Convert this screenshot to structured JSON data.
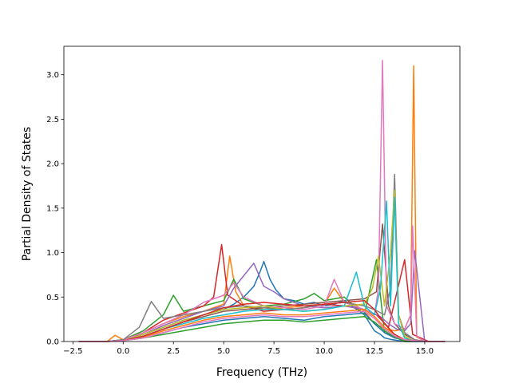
{
  "chart_data": {
    "type": "line",
    "xlabel": "Frequency (THz)",
    "ylabel": "Partial Density of States",
    "xlim": [
      -2.95,
      16.75
    ],
    "ylim": [
      0,
      3.32
    ],
    "xticks": [
      -2.5,
      0.0,
      2.5,
      5.0,
      7.5,
      10.0,
      12.5,
      15.0
    ],
    "xtick_labels": [
      "−2.5",
      "0.0",
      "2.5",
      "5.0",
      "7.5",
      "10.0",
      "12.5",
      "15.0"
    ],
    "yticks": [
      0.0,
      0.5,
      1.0,
      1.5,
      2.0,
      2.5,
      3.0
    ],
    "ytick_labels": [
      "0.0",
      "0.5",
      "1.0",
      "1.5",
      "2.0",
      "2.5",
      "3.0"
    ],
    "grid": false,
    "legend": "none",
    "series": [
      {
        "color": "#1f77b4",
        "x": [
          -2.2,
          -0.8,
          0.0,
          1.0,
          2.0,
          3.0,
          4.0,
          5.0,
          5.5,
          6.0,
          6.5,
          6.8,
          7.0,
          7.3,
          7.6,
          8.0,
          8.5,
          9.0,
          9.5,
          10.0,
          10.5,
          11.0,
          11.5,
          12.0,
          12.5,
          12.8,
          13.0,
          13.2,
          13.4,
          14.0,
          14.5,
          15.0,
          16.0
        ],
        "y": [
          0,
          0,
          0.02,
          0.08,
          0.16,
          0.24,
          0.3,
          0.36,
          0.42,
          0.5,
          0.62,
          0.78,
          0.9,
          0.7,
          0.58,
          0.48,
          0.46,
          0.42,
          0.44,
          0.4,
          0.42,
          0.46,
          0.38,
          0.3,
          0.12,
          0.08,
          0.04,
          0.03,
          0.02,
          0,
          0,
          0,
          0
        ]
      },
      {
        "color": "#ff7f0e",
        "x": [
          -2.2,
          -0.8,
          -0.4,
          0.0,
          1.0,
          2.0,
          3.0,
          4.0,
          5.0,
          5.3,
          5.6,
          6.0,
          7.0,
          8.0,
          9.0,
          10.0,
          10.5,
          11.0,
          11.5,
          12.0,
          12.5,
          13.0,
          13.5,
          14.0,
          14.3,
          14.45,
          14.6,
          15.0,
          16.0
        ],
        "y": [
          0,
          0,
          0.07,
          0.02,
          0.1,
          0.2,
          0.28,
          0.34,
          0.42,
          0.96,
          0.56,
          0.4,
          0.36,
          0.38,
          0.4,
          0.42,
          0.6,
          0.44,
          0.42,
          0.34,
          0.2,
          0.15,
          0.12,
          0.14,
          0.3,
          3.1,
          0.05,
          0,
          0
        ]
      },
      {
        "color": "#2ca02c",
        "x": [
          -2.2,
          -0.8,
          0.0,
          1.0,
          2.0,
          2.5,
          3.0,
          4.0,
          5.0,
          5.5,
          6.0,
          7.0,
          8.0,
          9.0,
          9.5,
          10.0,
          11.0,
          12.0,
          12.6,
          13.0,
          14.0,
          16.0
        ],
        "y": [
          0,
          0,
          0.02,
          0.12,
          0.3,
          0.52,
          0.34,
          0.4,
          0.46,
          0.7,
          0.48,
          0.4,
          0.42,
          0.48,
          0.54,
          0.46,
          0.5,
          0.3,
          0.92,
          0.1,
          0,
          0
        ]
      },
      {
        "color": "#d62728",
        "x": [
          -2.2,
          -0.8,
          0.0,
          1.0,
          2.0,
          3.0,
          4.0,
          4.5,
          4.9,
          5.2,
          5.6,
          6.0,
          7.0,
          8.0,
          9.0,
          10.0,
          11.0,
          12.0,
          12.6,
          13.2,
          14.0,
          14.4,
          14.8,
          15.2,
          16.0
        ],
        "y": [
          0,
          0,
          0.02,
          0.1,
          0.24,
          0.32,
          0.4,
          0.5,
          1.09,
          0.52,
          0.46,
          0.4,
          0.34,
          0.36,
          0.38,
          0.42,
          0.4,
          0.36,
          0.3,
          0.16,
          0.92,
          0.08,
          0.04,
          0,
          0
        ]
      },
      {
        "color": "#9467bd",
        "x": [
          -2.2,
          -0.8,
          0.0,
          1.0,
          2.0,
          3.0,
          4.0,
          5.0,
          5.5,
          6.0,
          6.5,
          7.0,
          7.5,
          8.0,
          9.0,
          10.0,
          11.0,
          12.0,
          12.8,
          13.2,
          13.6,
          14.0,
          14.3,
          14.5,
          15.0,
          16.0
        ],
        "y": [
          0,
          0,
          0.02,
          0.08,
          0.18,
          0.26,
          0.34,
          0.4,
          0.6,
          0.74,
          0.88,
          0.62,
          0.56,
          0.48,
          0.4,
          0.38,
          0.4,
          0.36,
          0.28,
          0.2,
          0.14,
          0.12,
          0.2,
          1.02,
          0,
          0
        ]
      },
      {
        "color": "#8c564b",
        "x": [
          -2.2,
          -0.8,
          0.0,
          1.0,
          2.0,
          3.0,
          4.0,
          5.0,
          6.0,
          7.0,
          8.0,
          9.0,
          10.0,
          11.0,
          12.0,
          12.6,
          12.9,
          13.2,
          13.5,
          14.0,
          14.5,
          15.0,
          16.0
        ],
        "y": [
          0,
          0,
          0.01,
          0.06,
          0.14,
          0.22,
          0.28,
          0.34,
          0.36,
          0.38,
          0.4,
          0.42,
          0.44,
          0.46,
          0.48,
          0.56,
          1.32,
          0.4,
          0.2,
          0.08,
          0.02,
          0,
          0
        ]
      },
      {
        "color": "#e377c2",
        "x": [
          -2.2,
          -0.8,
          0.0,
          1.0,
          2.0,
          3.0,
          4.0,
          5.0,
          5.5,
          6.0,
          7.0,
          8.0,
          9.0,
          10.0,
          10.5,
          11.0,
          12.0,
          12.5,
          12.7,
          12.9,
          13.1,
          13.5,
          14.0,
          14.3,
          14.4,
          14.6,
          15.0,
          16.0
        ],
        "y": [
          0,
          0,
          0.02,
          0.1,
          0.2,
          0.3,
          0.44,
          0.52,
          0.66,
          0.5,
          0.4,
          0.38,
          0.36,
          0.4,
          0.7,
          0.44,
          0.36,
          0.3,
          0.6,
          3.16,
          0.4,
          0.2,
          0.14,
          0.3,
          1.3,
          0.06,
          0,
          0
        ]
      },
      {
        "color": "#7f7f7f",
        "x": [
          -2.2,
          -0.8,
          0.0,
          0.8,
          1.4,
          2.0,
          3.0,
          4.0,
          5.0,
          6.0,
          7.0,
          8.0,
          9.0,
          10.0,
          11.0,
          12.0,
          12.5,
          13.0,
          13.3,
          13.5,
          13.7,
          14.0,
          14.5,
          15.0,
          16.0
        ],
        "y": [
          0,
          0,
          0.02,
          0.16,
          0.45,
          0.26,
          0.3,
          0.34,
          0.38,
          0.4,
          0.38,
          0.36,
          0.38,
          0.42,
          0.44,
          0.4,
          0.36,
          0.3,
          0.6,
          1.88,
          0.3,
          0.1,
          0.02,
          0,
          0
        ]
      },
      {
        "color": "#bcbd22",
        "x": [
          -2.2,
          -0.8,
          0.0,
          1.0,
          2.0,
          3.0,
          4.0,
          5.0,
          6.0,
          7.0,
          8.0,
          9.0,
          10.0,
          11.0,
          12.0,
          12.4,
          12.7,
          13.0,
          13.3,
          13.5,
          13.7,
          14.0,
          14.5,
          15.0,
          16.0
        ],
        "y": [
          0,
          0,
          0.01,
          0.08,
          0.16,
          0.24,
          0.3,
          0.36,
          0.38,
          0.4,
          0.36,
          0.34,
          0.36,
          0.4,
          0.42,
          0.6,
          0.96,
          0.4,
          1.0,
          1.7,
          0.3,
          0.06,
          0,
          0,
          0
        ]
      },
      {
        "color": "#17becf",
        "x": [
          -2.2,
          -0.8,
          0.0,
          1.0,
          2.0,
          3.0,
          4.0,
          5.0,
          6.0,
          7.0,
          8.0,
          9.0,
          10.0,
          11.0,
          11.6,
          12.0,
          12.5,
          12.8,
          13.1,
          13.3,
          13.5,
          13.7,
          14.0,
          14.5,
          15.0,
          16.0
        ],
        "y": [
          0,
          0,
          0.01,
          0.06,
          0.14,
          0.2,
          0.26,
          0.3,
          0.34,
          0.36,
          0.36,
          0.34,
          0.36,
          0.4,
          0.78,
          0.4,
          0.3,
          0.6,
          1.58,
          0.4,
          1.62,
          0.2,
          0.04,
          0,
          0,
          0
        ]
      },
      {
        "color": "#1f77b4",
        "x": [
          -2.2,
          -0.8,
          0.0,
          1.0,
          2.0,
          3.0,
          4.0,
          5.0,
          6.0,
          7.0,
          8.0,
          9.0,
          10.0,
          11.0,
          12.0,
          12.5,
          13.0,
          13.5,
          14.0,
          14.5,
          15.0,
          16.0
        ],
        "y": [
          0,
          0,
          0.01,
          0.04,
          0.1,
          0.16,
          0.2,
          0.24,
          0.26,
          0.28,
          0.26,
          0.24,
          0.28,
          0.3,
          0.32,
          0.2,
          0.1,
          0.04,
          0.02,
          0,
          0,
          0
        ]
      },
      {
        "color": "#ff7f0e",
        "x": [
          -2.2,
          -0.8,
          0.0,
          1.0,
          2.0,
          3.0,
          4.0,
          5.0,
          6.0,
          7.0,
          8.0,
          9.0,
          10.0,
          11.0,
          12.0,
          12.5,
          13.0,
          13.5,
          14.0,
          15.0,
          16.0
        ],
        "y": [
          0,
          0,
          0.01,
          0.05,
          0.12,
          0.18,
          0.24,
          0.28,
          0.3,
          0.32,
          0.3,
          0.3,
          0.32,
          0.34,
          0.36,
          0.28,
          0.16,
          0.08,
          0.02,
          0,
          0
        ]
      },
      {
        "color": "#2ca02c",
        "x": [
          -2.2,
          -0.8,
          0.0,
          1.0,
          2.0,
          3.0,
          4.0,
          5.0,
          6.0,
          7.0,
          8.0,
          9.0,
          10.0,
          11.0,
          12.0,
          12.5,
          13.0,
          13.5,
          14.0,
          15.0,
          16.0
        ],
        "y": [
          0,
          0,
          0.01,
          0.04,
          0.08,
          0.12,
          0.16,
          0.2,
          0.22,
          0.24,
          0.24,
          0.22,
          0.24,
          0.26,
          0.28,
          0.22,
          0.12,
          0.05,
          0.01,
          0,
          0
        ]
      },
      {
        "color": "#d62728",
        "x": [
          -2.2,
          -0.8,
          0.0,
          1.0,
          2.0,
          3.0,
          4.0,
          5.0,
          6.0,
          7.0,
          8.0,
          9.0,
          10.0,
          11.0,
          12.0,
          12.5,
          13.0,
          13.5,
          14.0,
          15.0,
          16.0
        ],
        "y": [
          0,
          0,
          0.01,
          0.06,
          0.14,
          0.22,
          0.3,
          0.38,
          0.42,
          0.44,
          0.42,
          0.4,
          0.42,
          0.44,
          0.46,
          0.36,
          0.2,
          0.08,
          0.02,
          0,
          0
        ]
      },
      {
        "color": "#e377c2",
        "x": [
          -2.2,
          -0.8,
          0.0,
          1.0,
          2.0,
          3.0,
          4.0,
          5.0,
          6.0,
          7.0,
          8.0,
          9.0,
          10.0,
          11.0,
          12.0,
          12.5,
          13.0,
          13.5,
          14.0,
          15.0,
          16.0
        ],
        "y": [
          0,
          0,
          0.01,
          0.04,
          0.1,
          0.16,
          0.22,
          0.26,
          0.28,
          0.3,
          0.28,
          0.28,
          0.3,
          0.32,
          0.34,
          0.26,
          0.14,
          0.06,
          0.02,
          0,
          0
        ]
      }
    ]
  }
}
